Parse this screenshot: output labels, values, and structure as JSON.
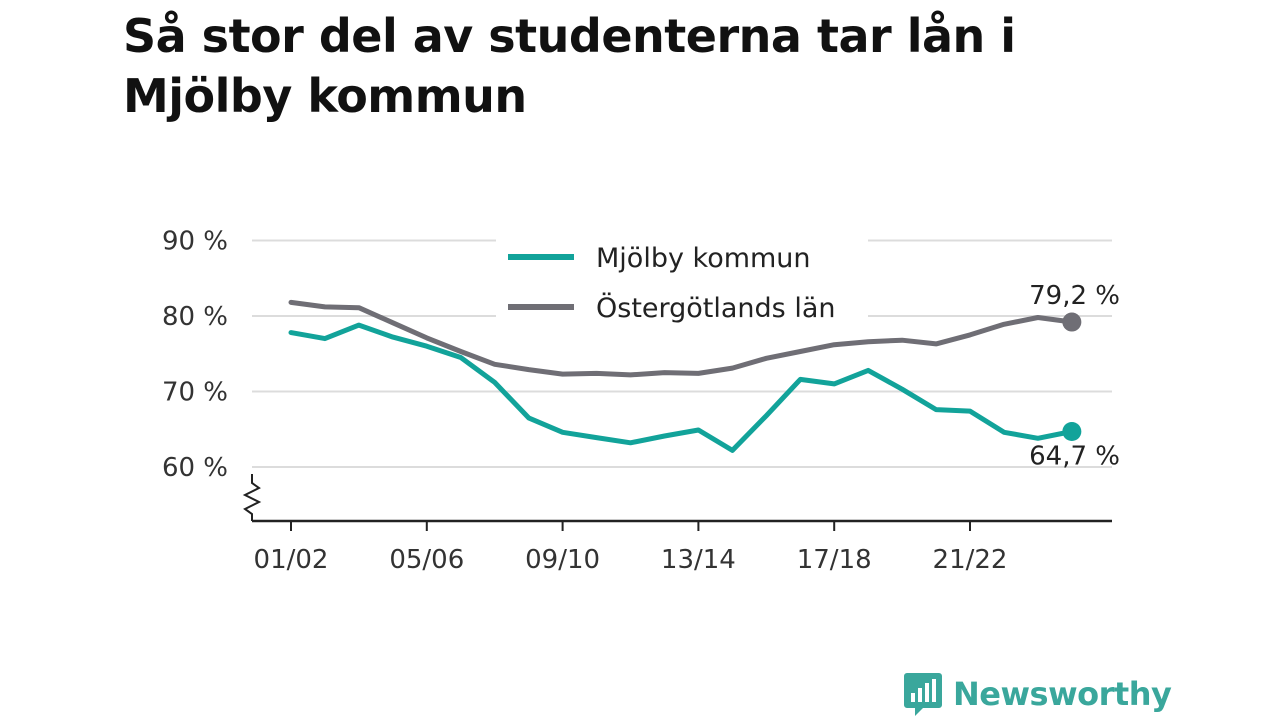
{
  "title": "Så stor del av studenterna tar lån i Mjölby kommun",
  "brand": {
    "name": "Newsworthy",
    "color": "#3aa79c",
    "icon": "bar-chart-bubble-icon"
  },
  "chart_data": {
    "type": "line",
    "x": [
      "01/02",
      "02/03",
      "03/04",
      "04/05",
      "05/06",
      "06/07",
      "07/08",
      "08/09",
      "09/10",
      "10/11",
      "11/12",
      "12/13",
      "13/14",
      "14/15",
      "15/16",
      "16/17",
      "17/18",
      "18/19",
      "19/20",
      "20/21",
      "21/22",
      "22/23",
      "23/24",
      "24/25"
    ],
    "xticks": [
      "01/02",
      "05/06",
      "09/10",
      "13/14",
      "17/18",
      "21/22"
    ],
    "yticks": [
      60,
      70,
      80,
      90
    ],
    "ytick_labels": [
      "60 %",
      "70 %",
      "80 %",
      "90 %"
    ],
    "ylim": [
      55,
      92
    ],
    "y_axis_break": true,
    "grid": true,
    "legend_position": "top-center",
    "series": [
      {
        "name": "Mjölby kommun",
        "color": "#12a39a",
        "values": [
          77.8,
          77.0,
          78.8,
          77.2,
          76.0,
          74.5,
          71.2,
          66.5,
          64.6,
          63.9,
          63.2,
          64.1,
          64.9,
          62.2,
          66.8,
          71.6,
          71.0,
          72.8,
          70.3,
          67.6,
          67.4,
          64.6,
          63.8,
          64.7
        ],
        "end_label": "64,7 %"
      },
      {
        "name": "Östergötlands län",
        "color": "#6f6e75",
        "values": [
          81.8,
          81.2,
          81.1,
          79.1,
          77.1,
          75.3,
          73.6,
          72.9,
          72.3,
          72.4,
          72.2,
          72.5,
          72.4,
          73.1,
          74.4,
          75.3,
          76.2,
          76.6,
          76.8,
          76.3,
          77.5,
          78.9,
          79.8,
          79.2
        ],
        "end_label": "79,2 %"
      }
    ]
  }
}
